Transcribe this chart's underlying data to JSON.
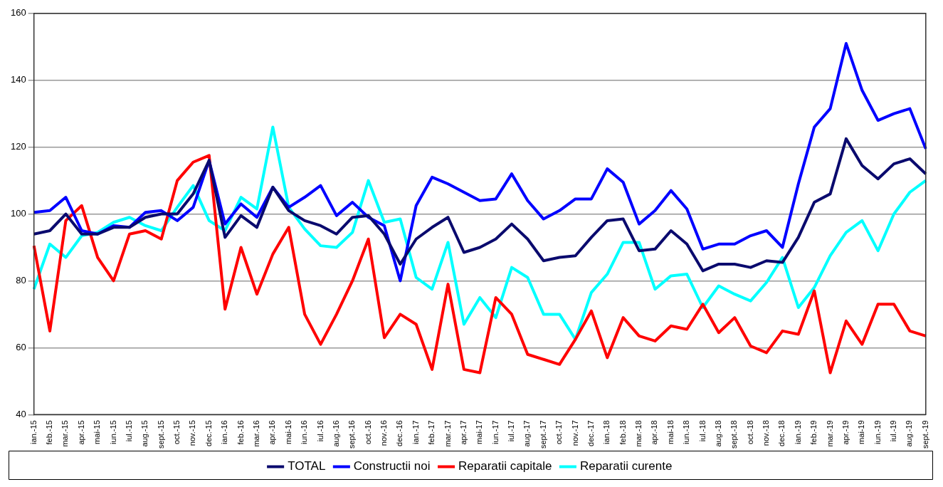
{
  "chart_data": {
    "type": "line",
    "categories": [
      "ian.-15",
      "feb.-15",
      "mar.-15",
      "apr.-15",
      "mai-15",
      "iun.-15",
      "iul.-15",
      "aug.-15",
      "sept.-15",
      "oct.-15",
      "nov.-15",
      "dec.-15",
      "ian.-16",
      "feb.-16",
      "mar.-16",
      "apr.-16",
      "mai-16",
      "iun.-16",
      "iul.-16",
      "aug.-16",
      "sept.-16",
      "oct.-16",
      "nov.-16",
      "dec.-16",
      "ian.-17",
      "feb.-17",
      "mar.-17",
      "apr.-17",
      "mai-17",
      "iun.-17",
      "iul.-17",
      "aug.-17",
      "sept.-17",
      "oct.-17",
      "nov.-17",
      "dec.-17",
      "ian.-18",
      "feb.-18",
      "mar.-18",
      "apr.-18",
      "mai-18",
      "iun.-18",
      "iul.-18",
      "aug.-18",
      "sept.-18",
      "oct.-18",
      "nov.-18",
      "dec.-18",
      "ian.-19",
      "feb.-19",
      "mar.-19",
      "apr.-19",
      "mai-19",
      "iun.-19",
      "iul.-19",
      "aug.-19",
      "sept.-19"
    ],
    "series": [
      {
        "name": "TOTAL",
        "color": "#0a0a6e",
        "values": [
          94,
          95,
          100,
          94,
          94,
          96,
          96,
          99,
          100,
          100,
          106,
          116,
          93,
          99.5,
          96,
          108,
          101,
          98,
          96.5,
          94,
          99,
          99.5,
          94,
          85,
          92.5,
          96,
          99,
          88.5,
          90,
          92.5,
          97,
          92.5,
          86,
          87,
          87.5,
          93,
          98,
          98.5,
          89,
          89.5,
          95,
          91,
          83,
          85,
          85,
          84,
          86,
          85.5,
          93,
          103.5,
          106,
          122.5,
          114.5,
          110.5,
          115,
          116.5,
          112
        ]
      },
      {
        "name": "Constructii noi",
        "color": "#0000ff",
        "values": [
          100.5,
          101,
          105,
          95,
          94,
          96.5,
          96,
          100.5,
          101,
          98,
          102,
          116,
          97,
          103,
          99,
          108,
          102,
          105,
          108.5,
          99.5,
          103.5,
          99,
          96.5,
          80,
          102.5,
          111,
          109,
          106.5,
          104,
          104.5,
          112,
          104,
          98.5,
          101,
          104.5,
          104.5,
          113.5,
          109.5,
          97,
          101,
          107,
          101.5,
          89.5,
          91,
          91,
          93.5,
          95,
          90,
          109,
          126,
          131.5,
          151,
          137,
          128,
          130,
          131.5,
          119.5
        ]
      },
      {
        "name": "Reparatii capitale",
        "color": "#ff0000",
        "values": [
          90.5,
          65,
          98,
          102.5,
          87,
          80,
          94,
          95,
          92.5,
          110,
          115.5,
          117.5,
          71.5,
          90,
          76,
          88,
          96,
          70,
          61,
          70,
          80,
          92.5,
          63,
          70,
          67,
          53.5,
          79,
          53.5,
          52.5,
          75,
          70,
          58,
          56.5,
          55,
          62.5,
          71,
          57,
          69,
          63.5,
          62,
          66.5,
          65.5,
          73,
          64.5,
          69,
          60.5,
          58.5,
          65,
          64,
          77,
          52.5,
          68,
          61,
          73,
          73,
          65,
          63.5
        ]
      },
      {
        "name": "Reparatii curente",
        "color": "#00ffff",
        "values": [
          77.5,
          91,
          87,
          93.5,
          94.5,
          97.5,
          99,
          96.5,
          95,
          102,
          108.5,
          98,
          95,
          105,
          101.5,
          126,
          102,
          95.5,
          90.5,
          90,
          94.5,
          110,
          97.5,
          98.5,
          81,
          77.5,
          91.5,
          67,
          75,
          69,
          84,
          81,
          70,
          70,
          62.5,
          76.5,
          82,
          91.5,
          91.5,
          77.5,
          81.5,
          82,
          72,
          78.5,
          76,
          74,
          79.5,
          87,
          72,
          78,
          87.5,
          94.5,
          98,
          89,
          100,
          106.5,
          110
        ]
      }
    ],
    "ylim": [
      40,
      160
    ],
    "yticks": [
      40,
      60,
      80,
      100,
      120,
      140,
      160
    ],
    "grid": "y",
    "legend": "bottom",
    "marker": "none",
    "line_style": "solid"
  }
}
